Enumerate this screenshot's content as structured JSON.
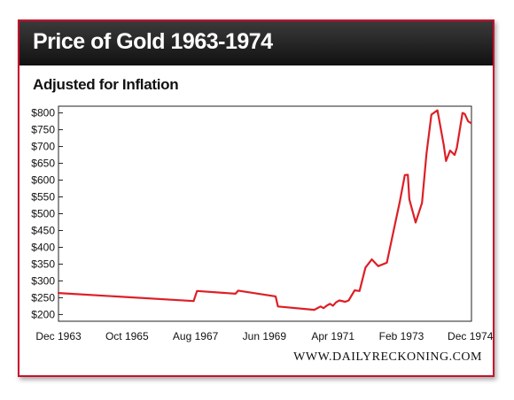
{
  "chart_data": {
    "type": "line",
    "title": "Price of Gold 1963-1974",
    "subtitle": "Adjusted for Inflation",
    "xlabel": "",
    "ylabel": "",
    "y_ticks": [
      "$200",
      "$250",
      "$300",
      "$350",
      "$400",
      "$450",
      "$500",
      "$550",
      "$600",
      "$650",
      "$700",
      "$750",
      "$800"
    ],
    "x_ticks": [
      "Dec 1963",
      "Oct 1965",
      "Aug 1967",
      "Jun 1969",
      "Apr 1971",
      "Feb 1973",
      "Dec 1974"
    ],
    "ylim": [
      180,
      820
    ],
    "xlim": [
      1963.92,
      1974.95
    ],
    "grid": false,
    "line_color": "#dd1f26",
    "series": [
      {
        "name": "",
        "x": [
          1963.92,
          1967.53,
          1967.62,
          1968.65,
          1968.72,
          1969.72,
          1969.78,
          1970.75,
          1970.92,
          1971.0,
          1971.08,
          1971.17,
          1971.25,
          1971.33,
          1971.42,
          1971.58,
          1971.67,
          1971.83,
          1971.96,
          1972.12,
          1972.29,
          1972.46,
          1972.69,
          1972.86,
          1973.04,
          1973.17,
          1973.25,
          1973.29,
          1973.46,
          1973.63,
          1973.75,
          1973.88,
          1974.04,
          1974.21,
          1974.27,
          1974.38,
          1974.5,
          1974.56,
          1974.71,
          1974.77,
          1974.86,
          1974.93
        ],
        "y": [
          264,
          240,
          270,
          262,
          271,
          254,
          224,
          214,
          224,
          219,
          226,
          232,
          226,
          236,
          242,
          238,
          242,
          272,
          270,
          340,
          364,
          344,
          354,
          444,
          538,
          615,
          616,
          543,
          474,
          532,
          680,
          795,
          808,
          705,
          657,
          688,
          675,
          696,
          800,
          797,
          775,
          770
        ]
      }
    ]
  },
  "watermark": "WWW.DAILYRECKONING.COM"
}
